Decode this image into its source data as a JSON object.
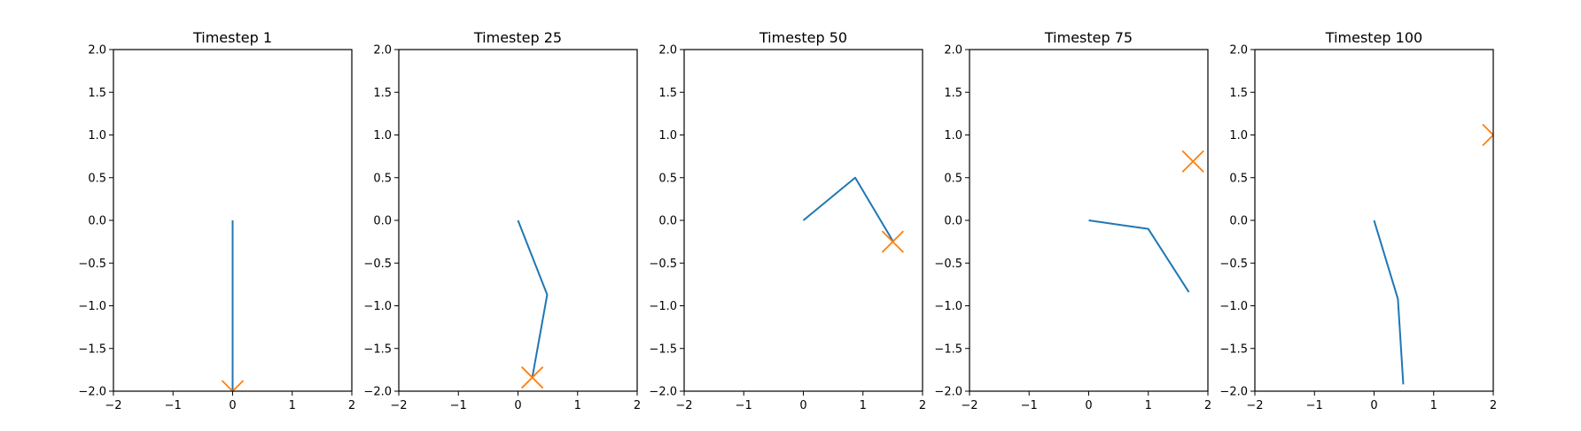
{
  "chart_data": [
    {
      "type": "line",
      "title": "Timestep 1",
      "xlim": [
        -2,
        2
      ],
      "ylim": [
        -2,
        2
      ],
      "xticks": [
        "−2",
        "−1",
        "0",
        "1",
        "2"
      ],
      "yticks": [
        "−2.0",
        "−1.5",
        "−1.0",
        "−0.5",
        "0.0",
        "0.5",
        "1.0",
        "1.5",
        "2.0"
      ],
      "series": [
        {
          "x": [
            0,
            0,
            0
          ],
          "y": [
            0,
            -1.0,
            -2.0
          ]
        }
      ],
      "target": {
        "x": 0.0,
        "y": -2.0
      }
    },
    {
      "type": "line",
      "title": "Timestep 25",
      "xlim": [
        -2,
        2
      ],
      "ylim": [
        -2,
        2
      ],
      "xticks": [
        "−2",
        "−1",
        "0",
        "1",
        "2"
      ],
      "yticks": [
        "−2.0",
        "−1.5",
        "−1.0",
        "−0.5",
        "0.0",
        "0.5",
        "1.0",
        "1.5",
        "2.0"
      ],
      "series": [
        {
          "x": [
            0,
            0.49,
            0.24
          ],
          "y": [
            0,
            -0.87,
            -1.84
          ]
        }
      ],
      "target": {
        "x": 0.24,
        "y": -1.84
      }
    },
    {
      "type": "line",
      "title": "Timestep 50",
      "xlim": [
        -2,
        2
      ],
      "ylim": [
        -2,
        2
      ],
      "xticks": [
        "−2",
        "−1",
        "0",
        "1",
        "2"
      ],
      "yticks": [
        "−2.0",
        "−1.5",
        "−1.0",
        "−0.5",
        "0.0",
        "0.5",
        "1.0",
        "1.5",
        "2.0"
      ],
      "series": [
        {
          "x": [
            0,
            0.87,
            1.5
          ],
          "y": [
            0,
            0.5,
            -0.24
          ]
        }
      ],
      "target": {
        "x": 1.5,
        "y": -0.25
      }
    },
    {
      "type": "line",
      "title": "Timestep 75",
      "xlim": [
        -2,
        2
      ],
      "ylim": [
        -2,
        2
      ],
      "xticks": [
        "−2",
        "−1",
        "0",
        "1",
        "2"
      ],
      "yticks": [
        "−2.0",
        "−1.5",
        "−1.0",
        "−0.5",
        "0.0",
        "0.5",
        "1.0",
        "1.5",
        "2.0"
      ],
      "series": [
        {
          "x": [
            0,
            1.0,
            1.68
          ],
          "y": [
            0,
            -0.1,
            -0.84
          ]
        }
      ],
      "target": {
        "x": 1.75,
        "y": 0.69
      }
    },
    {
      "type": "line",
      "title": "Timestep 100",
      "xlim": [
        -2,
        2
      ],
      "ylim": [
        -2,
        2
      ],
      "xticks": [
        "−2",
        "−1",
        "0",
        "1",
        "2"
      ],
      "yticks": [
        "−2.0",
        "−1.5",
        "−1.0",
        "−0.5",
        "0.0",
        "0.5",
        "1.0",
        "1.5",
        "2.0"
      ],
      "series": [
        {
          "x": [
            0,
            0.4,
            0.49
          ],
          "y": [
            0,
            -0.92,
            -1.92
          ]
        }
      ],
      "target": {
        "x": 2.0,
        "y": 1.0
      }
    }
  ],
  "colors": {
    "line": "#1f77b4",
    "target": "#ff7f0e",
    "axis": "#000000"
  }
}
